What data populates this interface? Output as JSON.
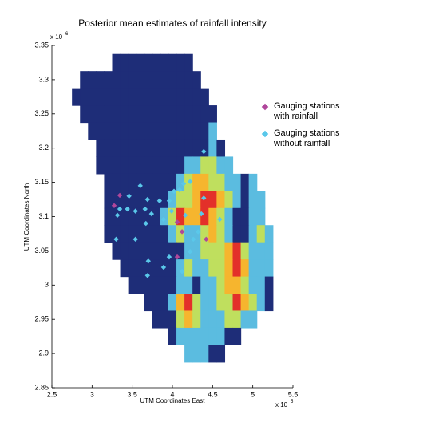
{
  "chart_data": {
    "type": "heatmap",
    "title": "Posterior mean estimates of rainfall intensity",
    "xlabel": "UTM Coordinates East",
    "ylabel": "UTM Coordinates North",
    "x_exponent": {
      "base": "x 10",
      "power": "5"
    },
    "y_exponent": {
      "base": "x 10",
      "power": "6"
    },
    "xlim": [
      2.5,
      5.5
    ],
    "ylim": [
      2.85,
      3.35
    ],
    "xticks": [
      2.5,
      3,
      3.5,
      4,
      4.5,
      5,
      5.5
    ],
    "yticks": [
      2.85,
      2.9,
      2.95,
      3,
      3.05,
      3.1,
      3.15,
      3.2,
      3.25,
      3.3,
      3.35
    ],
    "field": {
      "colors": [
        "#1e2d78",
        "#5bbce0",
        "#bfdf5e",
        "#f6b52e",
        "#e3302a"
      ],
      "x": [
        2.8,
        2.9,
        3.0,
        3.1,
        3.2,
        3.3,
        3.4,
        3.5,
        3.6,
        3.7,
        3.8,
        3.9,
        4.0,
        4.1,
        4.2,
        4.3,
        4.4,
        4.5,
        4.6,
        4.7,
        4.8,
        4.9,
        5.0,
        5.1,
        5.2
      ],
      "y": [
        3.325,
        3.3,
        3.275,
        3.25,
        3.225,
        3.2,
        3.175,
        3.15,
        3.125,
        3.1,
        3.075,
        3.05,
        3.025,
        3.0,
        2.975,
        2.95,
        2.925,
        2.9
      ],
      "z": [
        [
          null,
          null,
          null,
          null,
          null,
          0,
          0,
          0,
          0,
          0,
          0,
          0,
          0,
          0,
          0,
          null,
          null,
          null,
          null,
          null,
          null,
          null,
          null,
          null,
          null
        ],
        [
          null,
          0,
          0,
          0,
          0,
          0,
          0,
          0,
          0,
          0,
          0,
          0,
          0,
          0,
          0,
          0,
          null,
          null,
          null,
          null,
          null,
          null,
          null,
          null,
          null
        ],
        [
          0,
          0,
          0,
          0,
          0,
          0,
          0,
          0,
          0,
          0,
          0,
          0,
          0,
          0,
          0,
          0,
          0,
          null,
          null,
          null,
          null,
          null,
          null,
          null,
          null
        ],
        [
          null,
          0,
          0,
          0,
          0,
          0,
          0,
          0,
          0,
          0,
          0,
          0,
          0,
          0,
          0,
          0,
          0,
          0,
          null,
          null,
          null,
          null,
          null,
          null,
          null
        ],
        [
          null,
          null,
          0,
          0,
          0,
          0,
          0,
          0,
          0,
          0,
          0,
          0,
          0,
          0,
          0,
          0,
          0,
          1,
          null,
          null,
          null,
          null,
          null,
          null,
          null
        ],
        [
          null,
          null,
          null,
          0,
          0,
          0,
          0,
          0,
          0,
          0,
          0,
          0,
          0,
          0,
          0,
          0,
          0,
          1,
          0,
          null,
          null,
          null,
          null,
          null,
          null
        ],
        [
          null,
          null,
          null,
          0,
          0,
          0,
          0,
          0,
          0,
          0,
          0,
          0,
          0,
          0,
          1,
          1,
          2,
          2,
          1,
          1,
          null,
          null,
          null,
          null,
          null
        ],
        [
          null,
          null,
          null,
          null,
          0,
          0,
          0,
          0,
          0,
          0,
          0,
          0,
          0,
          1,
          2,
          3,
          3,
          2,
          2,
          1,
          1,
          0,
          1,
          null,
          null
        ],
        [
          null,
          null,
          null,
          null,
          0,
          0,
          0,
          0,
          0,
          0,
          0,
          0,
          1,
          2,
          2,
          3,
          4,
          4,
          3,
          2,
          1,
          0,
          1,
          1,
          null
        ],
        [
          null,
          null,
          null,
          null,
          0,
          0,
          0,
          0,
          0,
          0,
          0,
          1,
          2,
          4,
          3,
          3,
          4,
          3,
          2,
          1,
          0,
          0,
          1,
          1,
          null
        ],
        [
          null,
          null,
          null,
          null,
          0,
          0,
          0,
          0,
          0,
          0,
          0,
          0,
          1,
          2,
          1,
          1,
          2,
          3,
          2,
          1,
          0,
          0,
          1,
          2,
          1
        ],
        [
          null,
          null,
          null,
          null,
          null,
          0,
          0,
          0,
          0,
          0,
          0,
          0,
          0,
          0,
          1,
          1,
          2,
          2,
          2,
          3,
          4,
          2,
          1,
          1,
          1
        ],
        [
          null,
          null,
          null,
          null,
          null,
          null,
          0,
          0,
          0,
          0,
          0,
          0,
          0,
          1,
          2,
          1,
          1,
          2,
          2,
          3,
          4,
          3,
          1,
          1,
          1
        ],
        [
          null,
          null,
          null,
          null,
          null,
          null,
          null,
          0,
          0,
          0,
          0,
          0,
          0,
          1,
          1,
          0,
          1,
          1,
          2,
          3,
          3,
          2,
          1,
          1,
          0
        ],
        [
          null,
          null,
          null,
          null,
          null,
          null,
          null,
          null,
          null,
          0,
          0,
          0,
          1,
          3,
          4,
          2,
          1,
          1,
          2,
          2,
          4,
          3,
          2,
          1,
          0
        ],
        [
          null,
          null,
          null,
          null,
          null,
          null,
          null,
          null,
          null,
          null,
          0,
          0,
          0,
          2,
          3,
          2,
          1,
          1,
          1,
          2,
          2,
          1,
          1,
          null,
          null
        ],
        [
          null,
          null,
          null,
          null,
          null,
          null,
          null,
          null,
          null,
          null,
          null,
          null,
          0,
          1,
          1,
          1,
          1,
          1,
          1,
          0,
          0,
          null,
          null,
          null,
          null
        ],
        [
          null,
          null,
          null,
          null,
          null,
          null,
          null,
          null,
          null,
          null,
          null,
          null,
          null,
          null,
          1,
          1,
          1,
          0,
          0,
          null,
          null,
          null,
          null,
          null,
          null
        ]
      ]
    },
    "legend": "upper right",
    "series": [
      {
        "name": "Gauging stations with rainfall",
        "color": "#b0479b",
        "x": [
          3.275,
          3.345,
          4.06,
          4.42,
          4.12,
          4.06
        ],
        "y": [
          3.116,
          3.131,
          3.092,
          3.067,
          3.078,
          3.041
        ]
      },
      {
        "name": "Gauging stations without rainfall",
        "color": "#5ac8ea",
        "x": [
          3.6,
          3.46,
          3.345,
          3.315,
          3.44,
          3.54,
          3.66,
          3.74,
          3.84,
          3.96,
          4.09,
          4.22,
          3.69,
          3.89,
          3.99,
          3.67,
          3.3,
          3.54,
          3.7,
          3.96,
          3.89,
          3.69,
          4.22,
          4.26,
          4.32,
          4.36,
          4.16,
          4.02,
          4.39,
          4.59,
          4.39,
          4.12,
          4.14
        ],
        "y": [
          3.145,
          3.13,
          3.111,
          3.102,
          3.111,
          3.108,
          3.111,
          3.104,
          3.123,
          3.123,
          3.139,
          3.151,
          3.125,
          3.096,
          3.108,
          3.09,
          3.067,
          3.067,
          3.035,
          3.041,
          3.026,
          3.014,
          3.049,
          3.067,
          3.078,
          3.104,
          3.102,
          3.137,
          3.195,
          3.096,
          3.127,
          3.02,
          3.148
        ]
      }
    ]
  }
}
